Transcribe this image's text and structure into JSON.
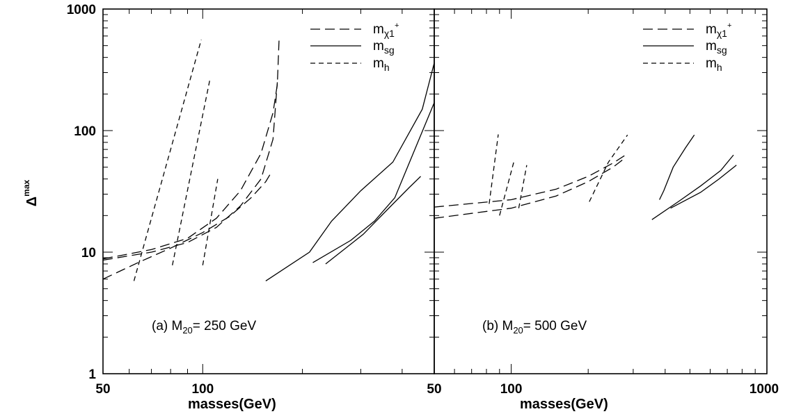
{
  "chart_data": [
    {
      "type": "line",
      "panel_label": "(a) M",
      "panel_label_sub": "20",
      "panel_label_tail": "= 250 GeV",
      "xlabel": "masses(GeV)",
      "ylabel": "Δ",
      "ylabel_sup": "max",
      "x_scale": "log",
      "y_scale": "log",
      "xlim": [
        50,
        500
      ],
      "ylim": [
        1,
        1000
      ],
      "x_tick_labels": [
        "50",
        "100"
      ],
      "y_tick_labels": [
        "1",
        "10",
        "100",
        "1000"
      ],
      "legend_position": "top-right",
      "legend": [
        {
          "style": "long-dash",
          "text": "m",
          "sub": "χ1",
          "sup": "+"
        },
        {
          "style": "solid",
          "text": "m",
          "sub": "sg",
          "sup": ""
        },
        {
          "style": "short-dash",
          "text": "m",
          "sub": "h",
          "sup": ""
        }
      ],
      "series": [
        {
          "style": "long-dash",
          "points": [
            [
              50,
              8.8
            ],
            [
              70,
              10.5
            ],
            [
              90,
              13
            ],
            [
              110,
              19
            ],
            [
              130,
              32
            ],
            [
              150,
              65
            ],
            [
              163,
              140
            ],
            [
              168,
              240
            ],
            [
              170,
              560
            ]
          ]
        },
        {
          "style": "long-dash",
          "points": [
            [
              50,
              8.6
            ],
            [
              70,
              10
            ],
            [
              90,
              12
            ],
            [
              110,
              16
            ],
            [
              130,
              24
            ],
            [
              150,
              40
            ],
            [
              163,
              85
            ],
            [
              168,
              250
            ]
          ]
        },
        {
          "style": "long-dash",
          "points": [
            [
              50,
              6
            ],
            [
              65,
              8.4
            ],
            [
              80,
              10.8
            ],
            [
              100,
              14.5
            ],
            [
              120,
              19.5
            ],
            [
              140,
              28
            ],
            [
              155,
              38
            ],
            [
              160,
              44
            ]
          ]
        },
        {
          "style": "solid",
          "points": [
            [
              155,
              5.8
            ],
            [
              210,
              10
            ],
            [
              245,
              18
            ],
            [
              300,
              32
            ],
            [
              375,
              55
            ],
            [
              460,
              150
            ],
            [
              500,
              360
            ]
          ]
        },
        {
          "style": "solid",
          "points": [
            [
              215,
              8.2
            ],
            [
              280,
              12.5
            ],
            [
              330,
              18
            ],
            [
              380,
              28
            ],
            [
              500,
              170
            ]
          ]
        },
        {
          "style": "solid",
          "points": [
            [
              235,
              8
            ],
            [
              305,
              14
            ],
            [
              370,
              24
            ],
            [
              420,
              34
            ],
            [
              455,
              42
            ]
          ]
        },
        {
          "style": "short-dash",
          "points": [
            [
              62,
              5.8
            ],
            [
              99,
              560
            ]
          ]
        },
        {
          "style": "short-dash",
          "points": [
            [
              81,
              7.8
            ],
            [
              105,
              260
            ]
          ]
        },
        {
          "style": "short-dash",
          "points": [
            [
              100,
              7.8
            ],
            [
              111,
              40
            ]
          ]
        }
      ]
    },
    {
      "type": "line",
      "panel_label": "(b) M",
      "panel_label_sub": "20",
      "panel_label_tail": "= 500 GeV",
      "xlabel": "masses(GeV)",
      "x_scale": "log",
      "y_scale": "log",
      "xlim": [
        50,
        1000
      ],
      "ylim": [
        1,
        1000
      ],
      "x_tick_labels": [
        "50",
        "100",
        "1000"
      ],
      "legend_position": "top-right",
      "legend": [
        {
          "style": "long-dash",
          "text": "m",
          "sub": "χ1",
          "sup": "+"
        },
        {
          "style": "solid",
          "text": "m",
          "sub": "sg",
          "sup": ""
        },
        {
          "style": "short-dash",
          "text": "m",
          "sub": "h",
          "sup": ""
        }
      ],
      "series": [
        {
          "style": "long-dash",
          "points": [
            [
              50,
              23.5
            ],
            [
              100,
              27
            ],
            [
              150,
              33
            ],
            [
              200,
              42
            ],
            [
              250,
              54
            ],
            [
              280,
              63
            ]
          ]
        },
        {
          "style": "long-dash",
          "points": [
            [
              50,
              19
            ],
            [
              100,
              23
            ],
            [
              150,
              29
            ],
            [
              200,
              38
            ],
            [
              250,
              50
            ],
            [
              280,
              60
            ]
          ]
        },
        {
          "style": "short-dash",
          "points": [
            [
              82,
              25
            ],
            [
              89,
              93
            ]
          ]
        },
        {
          "style": "short-dash",
          "points": [
            [
              90,
              20
            ],
            [
              103,
              58
            ]
          ]
        },
        {
          "style": "short-dash",
          "points": [
            [
              107,
              23
            ],
            [
              115,
              52
            ]
          ]
        },
        {
          "style": "short-dash",
          "points": [
            [
              202,
              26
            ],
            [
              240,
              55
            ],
            [
              285,
              92
            ]
          ]
        },
        {
          "style": "solid",
          "points": [
            [
              380,
              27
            ],
            [
              395,
              32
            ],
            [
              430,
              50
            ],
            [
              480,
              72
            ],
            [
              520,
              92
            ]
          ]
        },
        {
          "style": "solid",
          "points": [
            [
              355,
              18.5
            ],
            [
              450,
              26
            ],
            [
              550,
              35
            ],
            [
              660,
              47
            ],
            [
              740,
              63
            ]
          ]
        },
        {
          "style": "solid",
          "points": [
            [
              420,
              23
            ],
            [
              550,
              31
            ],
            [
              650,
              40
            ],
            [
              760,
              52
            ]
          ]
        }
      ]
    }
  ]
}
